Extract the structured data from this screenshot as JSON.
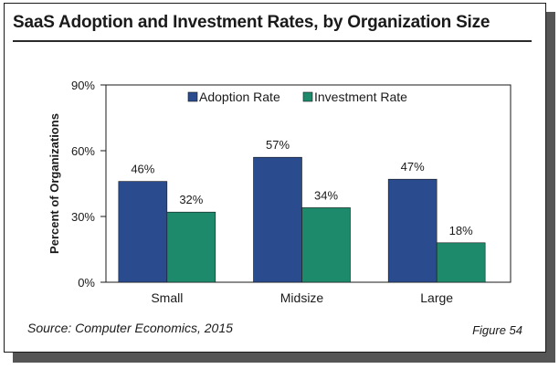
{
  "source_text": "Source: Computer Economics, 2015",
  "figure_label": "Figure 54",
  "colors": {
    "adoption": "#2a4b8d",
    "investment": "#1e8a6c",
    "text": "#1a1a1a"
  },
  "chart_data": {
    "type": "bar",
    "title": "SaaS Adoption and Investment Rates, by Organization Size",
    "xlabel": "",
    "ylabel": "Percent of Organizations",
    "categories": [
      "Small",
      "Midsize",
      "Large"
    ],
    "series": [
      {
        "name": "Adoption Rate",
        "values": [
          46,
          57,
          47
        ],
        "labels": [
          "46%",
          "57%",
          "47%"
        ]
      },
      {
        "name": "Investment Rate",
        "values": [
          32,
          34,
          18
        ],
        "labels": [
          "32%",
          "34%",
          "18%"
        ]
      }
    ],
    "ylim": [
      0,
      90
    ],
    "yticks": [
      0,
      30,
      60,
      90
    ],
    "ytick_labels": [
      "0%",
      "30%",
      "60%",
      "90%"
    ],
    "grid": false,
    "legend_position": "top-center"
  }
}
